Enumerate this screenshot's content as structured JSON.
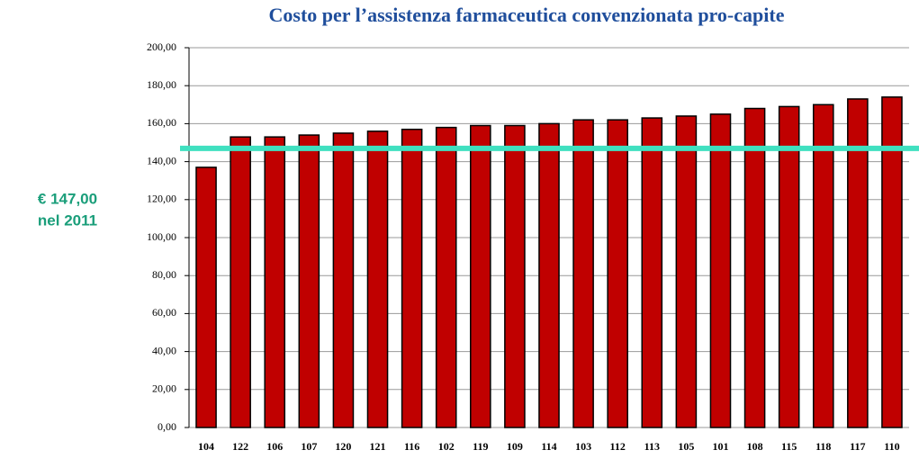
{
  "chart_data": {
    "type": "bar",
    "title": "Costo per l’assistenza farmaceutica convenzionata pro-capite",
    "categories": [
      "104",
      "122",
      "106",
      "107",
      "120",
      "121",
      "116",
      "102",
      "119",
      "109",
      "114",
      "103",
      "112",
      "113",
      "105",
      "101",
      "108",
      "115",
      "118",
      "117",
      "110"
    ],
    "values": [
      137,
      153,
      153,
      154,
      155,
      156,
      157,
      158,
      159,
      159,
      160,
      162,
      162,
      163,
      164,
      165,
      168,
      169,
      170,
      173,
      174
    ],
    "color": "#c00000",
    "ylim": [
      0,
      200
    ],
    "yticks": [
      {
        "value": 0,
        "label": "0,00"
      },
      {
        "value": 20,
        "label": "20,00"
      },
      {
        "value": 40,
        "label": "40,00"
      },
      {
        "value": 60,
        "label": "60,00"
      },
      {
        "value": 80,
        "label": "80,00"
      },
      {
        "value": 100,
        "label": "100,00"
      },
      {
        "value": 120,
        "label": "120,00"
      },
      {
        "value": 140,
        "label": "140,00"
      },
      {
        "value": 160,
        "label": "160,00"
      },
      {
        "value": 180,
        "label": "180,00"
      },
      {
        "value": 200,
        "label": "200,00"
      }
    ],
    "grid": true,
    "reference_line": {
      "value": 147,
      "color": "#40e0c0",
      "annotation": [
        "€ 147,00",
        "nel 2011"
      ]
    }
  }
}
